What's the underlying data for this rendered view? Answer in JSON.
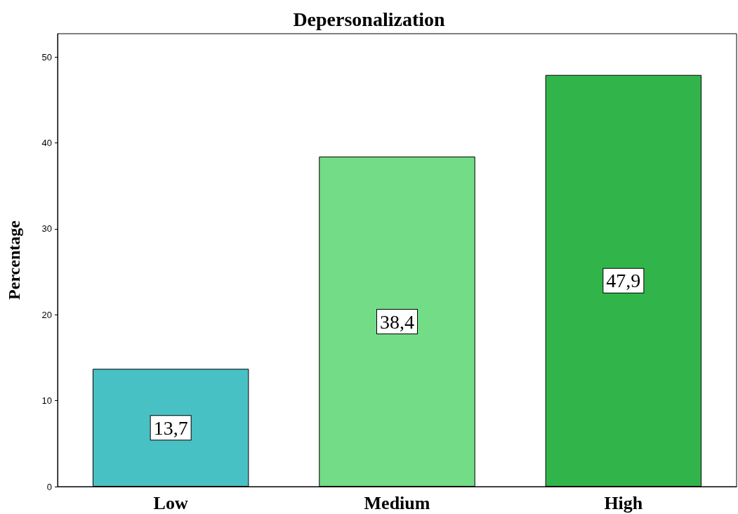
{
  "chart_data": {
    "type": "bar",
    "title": "Depersonalization",
    "ylabel": "Percentage",
    "categories": [
      "Low",
      "Medium",
      "High"
    ],
    "values": [
      13.7,
      38.4,
      47.9
    ],
    "colors": [
      "#48c1c4",
      "#72dc87",
      "#31b54a"
    ],
    "value_labels": [
      "13,7",
      "38,4",
      "47,9"
    ],
    "ylim": [
      0,
      52.7
    ],
    "yticks": [
      0,
      10,
      20,
      30,
      40,
      50
    ],
    "grid": false
  }
}
